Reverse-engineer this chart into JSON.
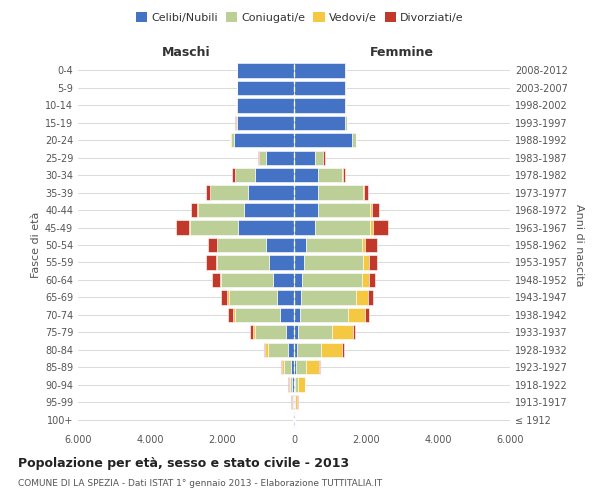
{
  "age_groups": [
    "100+",
    "95-99",
    "90-94",
    "85-89",
    "80-84",
    "75-79",
    "70-74",
    "65-69",
    "60-64",
    "55-59",
    "50-54",
    "45-49",
    "40-44",
    "35-39",
    "30-34",
    "25-29",
    "20-24",
    "15-19",
    "10-14",
    "5-9",
    "0-4"
  ],
  "birth_years": [
    "≤ 1912",
    "1913-1917",
    "1918-1922",
    "1923-1927",
    "1928-1932",
    "1933-1937",
    "1938-1942",
    "1943-1947",
    "1948-1952",
    "1953-1957",
    "1958-1962",
    "1963-1967",
    "1968-1972",
    "1973-1977",
    "1978-1982",
    "1983-1987",
    "1988-1992",
    "1993-1997",
    "1998-2002",
    "2003-2007",
    "2008-2012"
  ],
  "males": {
    "celibi": [
      20,
      35,
      55,
      70,
      170,
      220,
      380,
      460,
      580,
      700,
      780,
      1550,
      1380,
      1280,
      1080,
      780,
      1680,
      1580,
      1580,
      1580,
      1580
    ],
    "coniugati": [
      8,
      25,
      70,
      220,
      560,
      850,
      1250,
      1350,
      1450,
      1450,
      1350,
      1350,
      1300,
      1050,
      560,
      180,
      80,
      40,
      20,
      8,
      4
    ],
    "vedovi": [
      4,
      8,
      25,
      45,
      70,
      70,
      70,
      45,
      25,
      18,
      8,
      8,
      8,
      4,
      4,
      4,
      4,
      4,
      4,
      4,
      4
    ],
    "divorziati": [
      2,
      4,
      8,
      18,
      45,
      70,
      140,
      170,
      230,
      280,
      260,
      380,
      170,
      120,
      70,
      45,
      18,
      8,
      4,
      4,
      4
    ]
  },
  "females": {
    "celibi": [
      15,
      25,
      40,
      55,
      90,
      110,
      160,
      185,
      235,
      280,
      330,
      570,
      670,
      670,
      670,
      570,
      1620,
      1430,
      1430,
      1430,
      1430
    ],
    "coniugati": [
      4,
      16,
      70,
      270,
      660,
      950,
      1350,
      1550,
      1650,
      1650,
      1550,
      1550,
      1450,
      1250,
      660,
      230,
      90,
      35,
      16,
      8,
      4
    ],
    "vedovi": [
      18,
      55,
      190,
      380,
      570,
      570,
      475,
      330,
      190,
      140,
      90,
      70,
      55,
      25,
      18,
      8,
      4,
      4,
      4,
      4,
      4
    ],
    "divorziati": [
      2,
      4,
      12,
      25,
      70,
      70,
      90,
      120,
      185,
      230,
      330,
      430,
      185,
      120,
      70,
      45,
      18,
      8,
      4,
      4,
      4
    ]
  },
  "colors": {
    "celibi": "#4472C4",
    "coniugati": "#BBCF96",
    "vedovi": "#F5C842",
    "divorziati": "#C0392B"
  },
  "legend_labels": [
    "Celibi/Nubili",
    "Coniugati/e",
    "Vedovi/e",
    "Divorziati/e"
  ],
  "title": "Popolazione per età, sesso e stato civile - 2013",
  "subtitle": "COMUNE DI LA SPEZIA - Dati ISTAT 1° gennaio 2013 - Elaborazione TUTTITALIA.IT",
  "xlabel_left": "Maschi",
  "xlabel_right": "Femmine",
  "ylabel_left": "Fasce di età",
  "ylabel_right": "Anni di nascita",
  "xlim": 6000,
  "xticks": [
    -6000,
    -4000,
    -2000,
    0,
    2000,
    4000,
    6000
  ],
  "xticklabels": [
    "6.000",
    "4.000",
    "2.000",
    "0",
    "2.000",
    "4.000",
    "6.000"
  ]
}
